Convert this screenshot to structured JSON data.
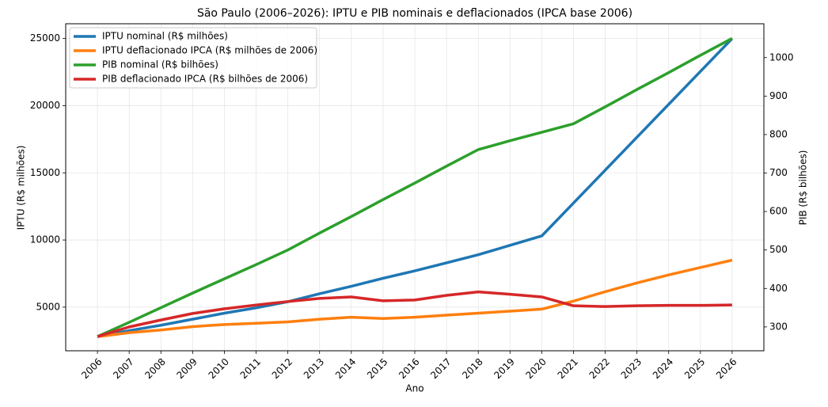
{
  "chart_data": {
    "type": "line",
    "title": "São Paulo (2006–2026): IPTU e PIB nominais e deflacionados (IPCA base 2006)",
    "x_label": "Ano",
    "y_label": "IPTU (R$ milhões)",
    "y2_label": "PIB (R$ bilhões)",
    "x": [
      2006,
      2007,
      2008,
      2009,
      2010,
      2011,
      2012,
      2013,
      2014,
      2015,
      2016,
      2017,
      2018,
      2019,
      2020,
      2021,
      2022,
      2023,
      2024,
      2025,
      2026
    ],
    "xlim": [
      2005,
      2027
    ],
    "xticks": [
      2006,
      2007,
      2008,
      2009,
      2010,
      2011,
      2012,
      2013,
      2014,
      2015,
      2016,
      2017,
      2018,
      2019,
      2020,
      2021,
      2022,
      2023,
      2024,
      2025,
      2026
    ],
    "ylim": [
      1750,
      26100
    ],
    "yticks": [
      5000,
      10000,
      15000,
      20000,
      25000
    ],
    "y2lim": [
      238,
      1088
    ],
    "y2ticks": [
      300,
      400,
      500,
      600,
      700,
      800,
      900,
      1000
    ],
    "grid": true,
    "legend": "upper left",
    "series": [
      {
        "name": "IPTU nominal (R$ milhões)",
        "color": "#1f77b4",
        "values": [
          2800,
          3250,
          3650,
          4100,
          4550,
          4950,
          5400,
          6000,
          6550,
          7150,
          7700,
          8300,
          8900,
          9600,
          10300,
          12750,
          15200,
          17650,
          20100,
          22550,
          25000
        ]
      },
      {
        "name": "IPTU deflacionado IPCA (R$ milhões de 2006)",
        "color": "#ff7f0e",
        "values": [
          2800,
          3100,
          3300,
          3550,
          3700,
          3800,
          3900,
          4100,
          4250,
          4150,
          4250,
          4400,
          4550,
          4700,
          4850,
          5450,
          6150,
          6800,
          7400,
          7950,
          8500
        ]
      },
      {
        "name": "PIB nominal (R$ bilhões)",
        "color": "#2ca02c",
        "axis": "y2",
        "values": [
          275,
          312,
          350,
          388,
          425,
          462,
          500,
          544,
          587,
          631,
          674,
          718,
          761,
          784,
          806,
          828,
          872,
          917,
          961,
          1006,
          1050
        ]
      },
      {
        "name": "PIB deflacionado IPCA (R$ bilhões de 2006)",
        "color": "#d62728",
        "axis": "y2",
        "values": [
          275,
          300,
          318,
          335,
          347,
          357,
          366,
          374,
          378,
          368,
          370,
          382,
          391,
          385,
          378,
          355,
          353,
          355,
          356,
          356,
          357
        ]
      }
    ]
  }
}
